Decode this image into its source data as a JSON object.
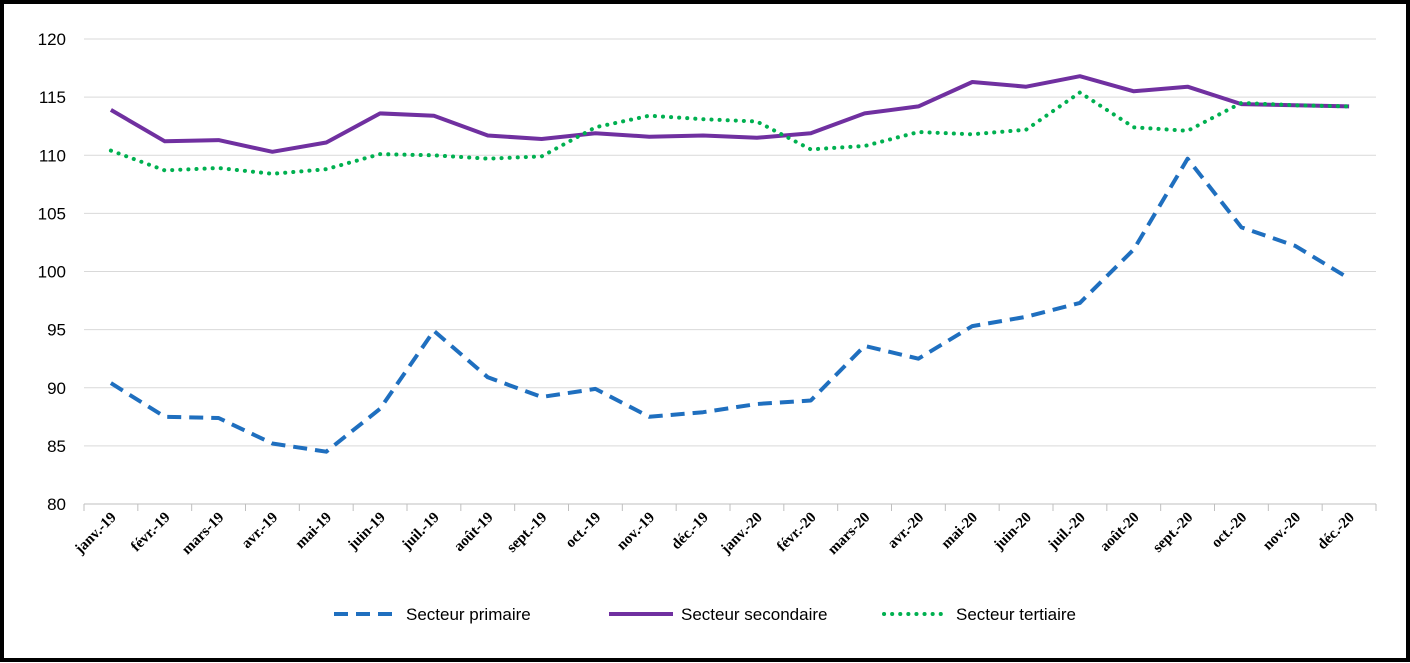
{
  "chart_data": {
    "type": "line",
    "title": "",
    "xlabel": "",
    "ylabel": "",
    "ylim": [
      80,
      120
    ],
    "y_ticks": [
      "80",
      "85",
      "90",
      "95",
      "100",
      "105",
      "110",
      "115",
      "120"
    ],
    "grid": "horizontal",
    "legend_position": "bottom",
    "categories": [
      "janv.-19",
      "févr.-19",
      "mars-19",
      "avr.-19",
      "mai-19",
      "juin-19",
      "juil.-19",
      "août-19",
      "sept.-19",
      "oct.-19",
      "nov.-19",
      "déc.-19",
      "janv.-20",
      "févr.-20",
      "mars-20",
      "avr.-20",
      "mai-20",
      "juin-20",
      "juil.-20",
      "août-20",
      "sept.-20",
      "oct.-20",
      "nov.-20",
      "déc.-20"
    ],
    "series": [
      {
        "name": "Secteur primaire",
        "color": "#1f6fbf",
        "style": "dashed",
        "values": [
          90.4,
          87.5,
          87.4,
          85.2,
          84.5,
          88.2,
          94.9,
          90.9,
          89.2,
          89.9,
          87.5,
          87.9,
          88.6,
          88.9,
          93.6,
          92.5,
          95.3,
          96.1,
          97.3,
          101.9,
          109.7,
          103.8,
          102.2,
          99.4
        ]
      },
      {
        "name": "Secteur secondaire",
        "color": "#7030a0",
        "style": "solid",
        "values": [
          113.9,
          111.2,
          111.3,
          110.3,
          111.1,
          113.6,
          113.4,
          111.7,
          111.4,
          111.9,
          111.6,
          111.7,
          111.5,
          111.9,
          113.6,
          114.2,
          116.3,
          115.9,
          116.8,
          115.5,
          115.9,
          114.4,
          114.3,
          114.2
        ]
      },
      {
        "name": "Secteur tertiaire",
        "color": "#00b050",
        "style": "dotted",
        "values": [
          110.4,
          108.7,
          108.9,
          108.4,
          108.8,
          110.1,
          110.0,
          109.7,
          109.9,
          112.4,
          113.4,
          113.1,
          112.9,
          110.5,
          110.8,
          112.0,
          111.8,
          112.2,
          115.4,
          112.4,
          112.1,
          114.5,
          114.3,
          114.2
        ]
      }
    ]
  }
}
